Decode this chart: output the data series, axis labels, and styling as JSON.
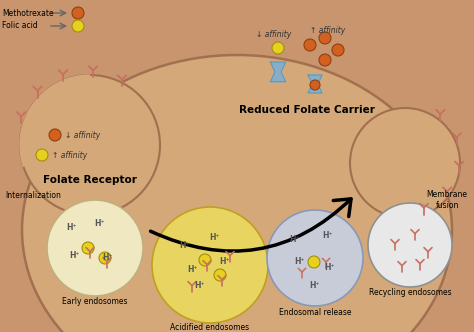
{
  "bg_color": "#c8956e",
  "membrane_edge_color": "#a07050",
  "methotrexate_color": "#d46020",
  "folic_acid_color": "#e8d020",
  "receptor_color": "#c87060",
  "carrier_color": "#7ab0d4",
  "endosome_early_color": "#f0e8c0",
  "endosome_acid_color": "#e8d460",
  "endosome_release_color": "#c8ccd8",
  "endosome_recycle_color": "#e8e8e8",
  "legend_methotrexate": "Methotrexate",
  "legend_folic_acid": "Folic acid",
  "label_folate_receptor": "Folate Receptor",
  "label_reduced_folate": "Reduced Folate Carrier",
  "label_internalization": "Internalization",
  "label_early_endosomes": "Early endosomes",
  "label_acidified_endosomes": "Acidified endosomes",
  "label_endosomal_release": "Endosomal release",
  "label_recycling_endosomes": "Recycling endosomes",
  "label_membrane_fusion": "Membrane\nfusion",
  "label_down_affinity": "↓ affinity",
  "label_up_affinity": "↑ affinity",
  "hplus": "H⁺"
}
